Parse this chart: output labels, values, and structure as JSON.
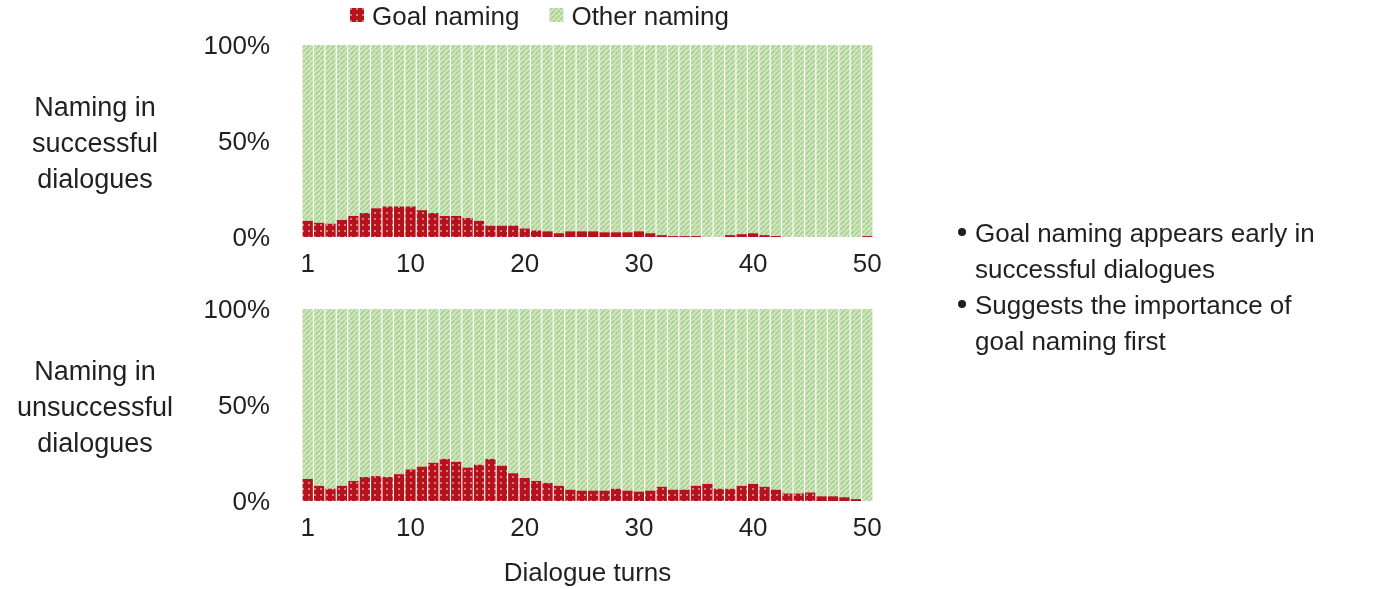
{
  "chart_data": [
    {
      "type": "bar",
      "stacked": true,
      "ylabel": "Naming in successful dialogues",
      "legend": "top",
      "ylim": [
        0,
        100
      ],
      "yticks": [
        {
          "value": 0,
          "label": "0%"
        },
        {
          "value": 50,
          "label": "50%"
        },
        {
          "value": 100,
          "label": "100%"
        }
      ],
      "categories": [
        "1",
        null,
        null,
        null,
        null,
        null,
        null,
        null,
        null,
        "10",
        null,
        null,
        null,
        null,
        null,
        null,
        null,
        null,
        null,
        "20",
        null,
        null,
        null,
        null,
        null,
        null,
        null,
        null,
        null,
        "30",
        null,
        null,
        null,
        null,
        null,
        null,
        null,
        null,
        null,
        "40",
        null,
        null,
        null,
        null,
        null,
        null,
        null,
        null,
        null,
        "50"
      ],
      "series": [
        {
          "name": "Goal naming",
          "color": "#b5121b",
          "values": [
            8.5,
            7.5,
            7,
            9,
            11,
            12.5,
            15,
            16,
            16,
            16,
            14,
            12.5,
            11,
            11,
            10,
            8.5,
            6,
            6,
            6,
            4.5,
            3.5,
            3,
            2,
            3,
            3,
            3,
            2.5,
            2.5,
            2.5,
            3,
            2,
            1,
            0.5,
            0.5,
            0.5,
            0,
            0,
            1,
            1.5,
            2,
            1,
            0.5,
            0,
            0,
            0,
            0,
            0,
            0,
            0,
            0.5
          ]
        },
        {
          "name": "Other naming",
          "color": "#a9d18e",
          "values": [
            91.5,
            92.5,
            93,
            91,
            89,
            87.5,
            85,
            84,
            84,
            84,
            86,
            87.5,
            89,
            89,
            90,
            91.5,
            94,
            94,
            94,
            95.5,
            96.5,
            97,
            98,
            97,
            97,
            97,
            97.5,
            97.5,
            97.5,
            97,
            98,
            99,
            99.5,
            99.5,
            99.5,
            100,
            100,
            99,
            98.5,
            98,
            99,
            99.5,
            100,
            100,
            100,
            100,
            100,
            100,
            100,
            99.5
          ]
        }
      ],
      "annotations": [
        "Goal naming appears early in successful dialogues",
        "Suggests the importance of goal naming first"
      ]
    },
    {
      "type": "bar",
      "stacked": true,
      "ylabel": "Naming in unsuccessful dialogues",
      "xlabel": "Dialogue turns",
      "ylim": [
        0,
        100
      ],
      "yticks": [
        {
          "value": 0,
          "label": "0%"
        },
        {
          "value": 50,
          "label": "50%"
        },
        {
          "value": 100,
          "label": "100%"
        }
      ],
      "categories": [
        "1",
        null,
        null,
        null,
        null,
        null,
        null,
        null,
        null,
        "10",
        null,
        null,
        null,
        null,
        null,
        null,
        null,
        null,
        null,
        "20",
        null,
        null,
        null,
        null,
        null,
        null,
        null,
        null,
        null,
        "30",
        null,
        null,
        null,
        null,
        null,
        null,
        null,
        null,
        null,
        "40",
        null,
        null,
        null,
        null,
        null,
        null,
        null,
        null,
        null,
        "50"
      ],
      "series": [
        {
          "color": "#b5121b",
          "values": [
            11.5,
            8,
            6.5,
            8,
            10.5,
            12.5,
            13,
            12.5,
            14,
            16.5,
            18,
            20,
            22,
            20.5,
            17.5,
            19,
            22,
            18.5,
            14.5,
            12,
            10.5,
            9.5,
            8,
            6,
            5.5,
            5.5,
            5.5,
            6.5,
            5.5,
            5,
            5.5,
            7.5,
            6,
            6,
            8,
            9,
            6.5,
            6.5,
            8,
            9,
            7.5,
            6,
            4,
            4,
            4.5,
            2.5,
            2.5,
            2,
            1,
            0
          ]
        },
        {
          "color": "#a9d18e",
          "values": [
            88.5,
            92,
            93.5,
            92,
            89.5,
            87.5,
            87,
            87.5,
            86,
            83.5,
            82,
            80,
            78,
            79.5,
            82.5,
            81,
            78,
            81.5,
            85.5,
            88,
            89.5,
            90.5,
            92,
            94,
            94.5,
            94.5,
            94.5,
            93.5,
            94.5,
            95,
            94.5,
            92.5,
            94,
            94,
            92,
            91,
            93.5,
            93.5,
            92,
            91,
            92.5,
            94,
            96,
            96,
            95.5,
            97.5,
            97.5,
            98,
            99,
            100
          ]
        }
      ]
    }
  ]
}
